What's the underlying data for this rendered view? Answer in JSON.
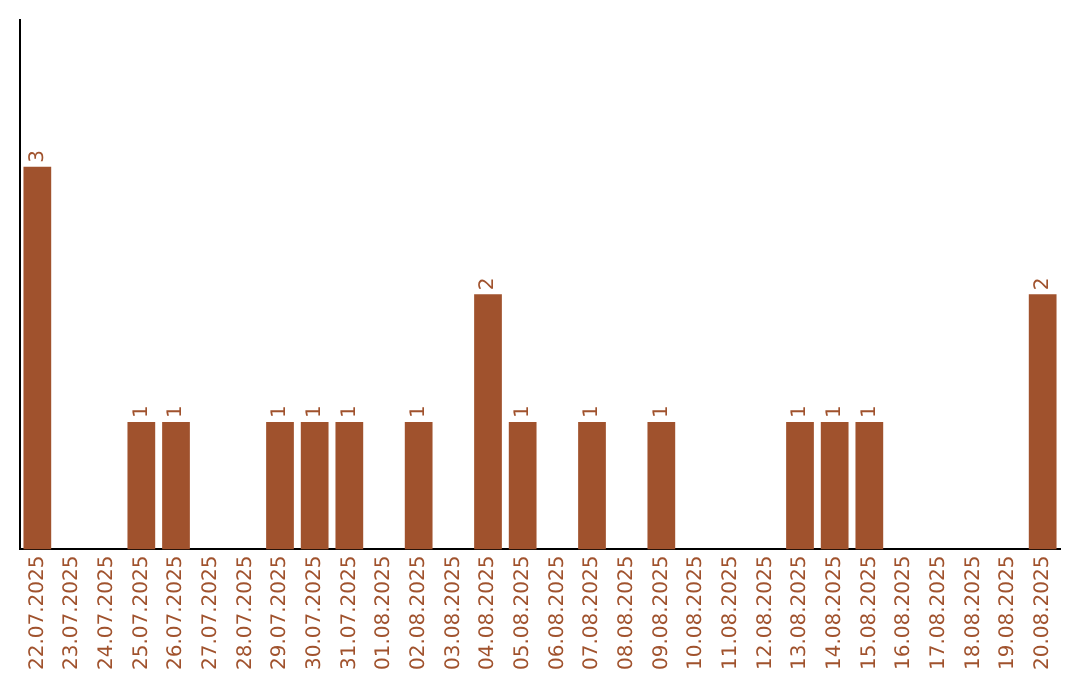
{
  "chart_data": {
    "type": "bar",
    "categories": [
      "22.07.2025",
      "23.07.2025",
      "24.07.2025",
      "25.07.2025",
      "26.07.2025",
      "27.07.2025",
      "28.07.2025",
      "29.07.2025",
      "30.07.2025",
      "31.07.2025",
      "01.08.2025",
      "02.08.2025",
      "03.08.2025",
      "04.08.2025",
      "05.08.2025",
      "06.08.2025",
      "07.08.2025",
      "08.08.2025",
      "09.08.2025",
      "10.08.2025",
      "11.08.2025",
      "12.08.2025",
      "13.08.2025",
      "14.08.2025",
      "15.08.2025",
      "16.08.2025",
      "17.08.2025",
      "18.08.2025",
      "19.08.2025",
      "20.08.2025"
    ],
    "values": [
      3,
      0,
      0,
      1,
      1,
      0,
      0,
      1,
      1,
      1,
      0,
      1,
      0,
      2,
      1,
      0,
      1,
      0,
      1,
      0,
      0,
      0,
      1,
      1,
      1,
      0,
      0,
      0,
      0,
      2
    ],
    "value_labels": [
      "3",
      null,
      null,
      "1",
      "1",
      null,
      null,
      "1",
      "1",
      "1",
      null,
      "1",
      null,
      "2",
      "1",
      null,
      "1",
      null,
      "1",
      null,
      null,
      null,
      "1",
      "1",
      "1",
      null,
      null,
      null,
      null,
      "2"
    ],
    "color": "#a0522d",
    "ylim": [
      0,
      4.15
    ],
    "tick_labels": "x",
    "grid": false,
    "legend": false
  }
}
